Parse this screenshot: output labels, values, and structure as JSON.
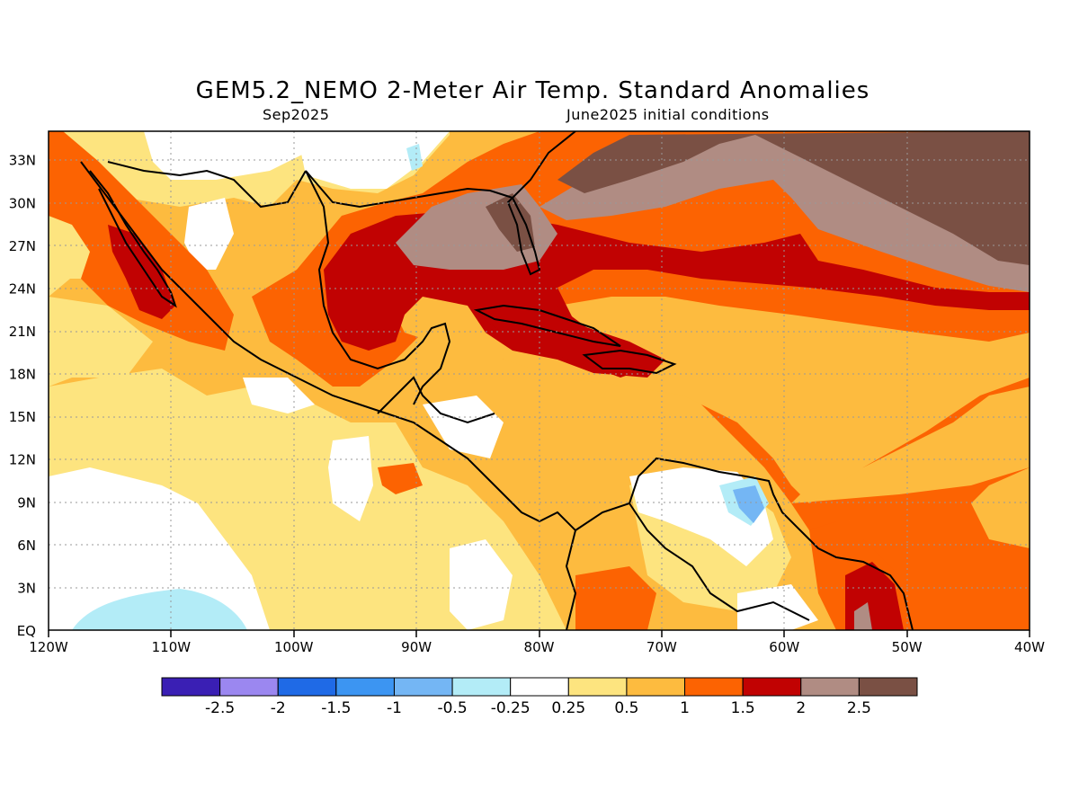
{
  "title": "GEM5.2_NEMO 2-Meter Air Temp. Standard Anomalies",
  "valid_period": "Sep2025",
  "init_label": "June2025 initial conditions",
  "map": {
    "lon_range": [
      "120W",
      "40W"
    ],
    "lat_range": [
      "EQ",
      "35N"
    ],
    "lat_ticks": [
      "EQ",
      "3N",
      "6N",
      "9N",
      "12N",
      "15N",
      "18N",
      "21N",
      "24N",
      "27N",
      "30N",
      "33N"
    ],
    "lon_ticks": [
      "120W",
      "110W",
      "100W",
      "90W",
      "80W",
      "70W",
      "60W",
      "50W",
      "40W"
    ],
    "gridlines": "dotted"
  },
  "legend": {
    "colors": [
      "#3a1fb4",
      "#9b87f0",
      "#1f6ae6",
      "#3c95f2",
      "#74b6f4",
      "#b3ecf7",
      "#ffffff",
      "#fde47f",
      "#fdbb3f",
      "#fc6302",
      "#c10202",
      "#b08c83",
      "#7a5044"
    ],
    "labels": [
      "-2.5",
      "-2",
      "-1.5",
      "-1",
      "-0.5",
      "-0.25",
      "0.25",
      "0.5",
      "1",
      "1.5",
      "2",
      "2.5"
    ]
  }
}
